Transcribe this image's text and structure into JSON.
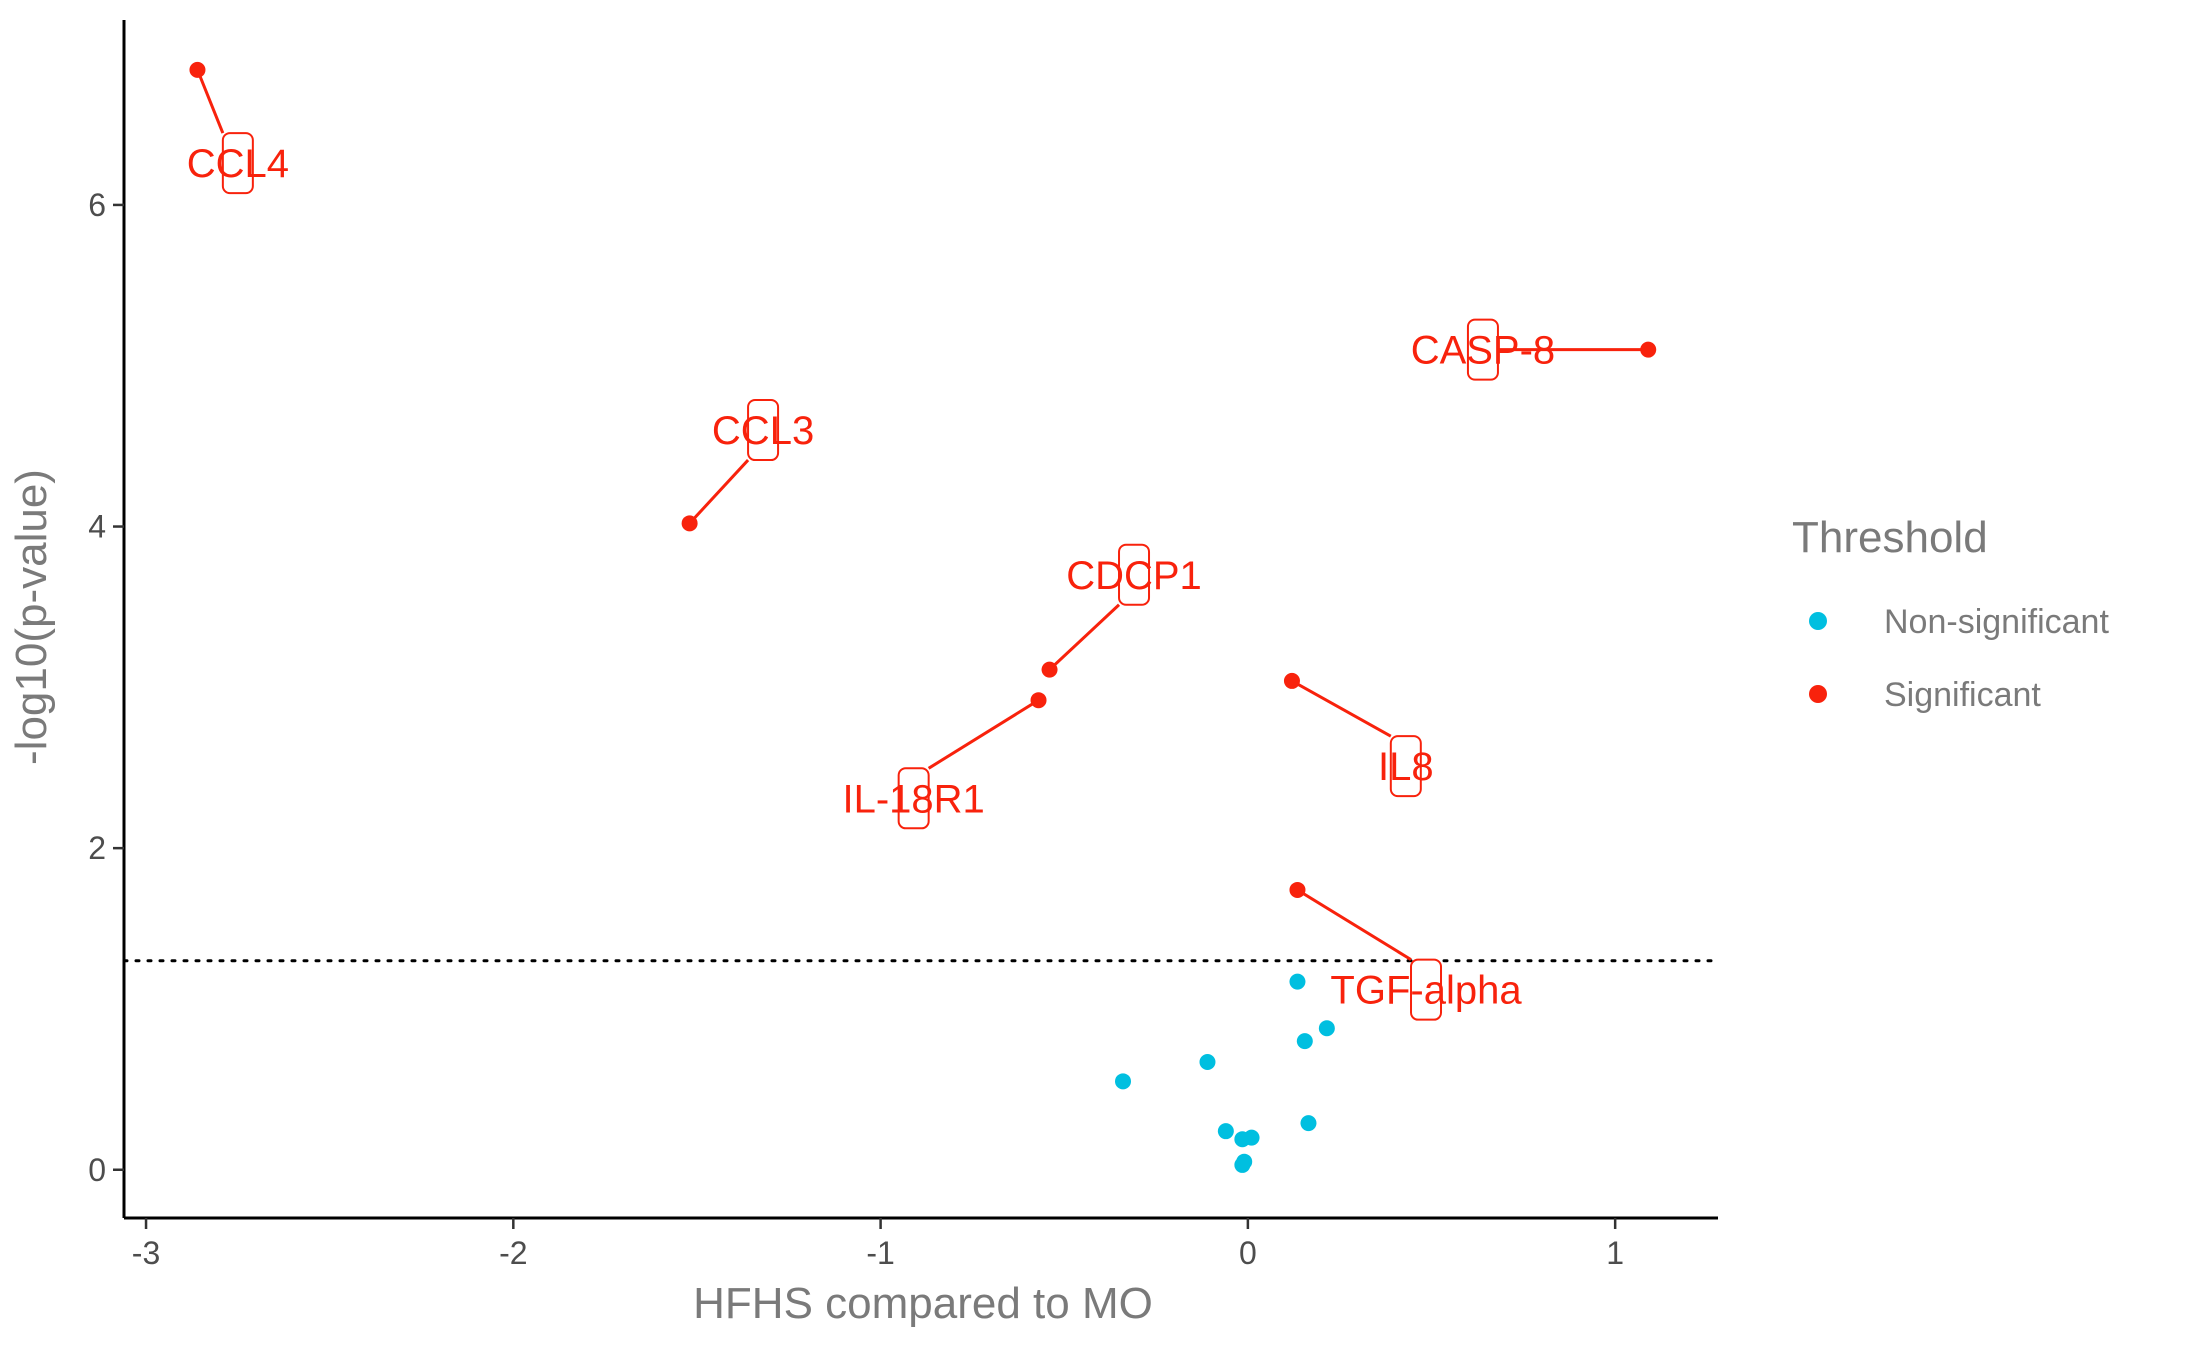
{
  "chart_data": {
    "type": "scatter",
    "xlabel": "HFHS compared to MO",
    "ylabel": "-log10(p-value)",
    "xlim": [
      -3.06,
      1.28
    ],
    "ylim": [
      -0.3,
      7.15
    ],
    "x_ticks": [
      -3,
      -2,
      -1,
      0,
      1
    ],
    "x_tick_labels": [
      "-3",
      "-2",
      "-1",
      "0",
      "1"
    ],
    "y_ticks": [
      0,
      2,
      4,
      6
    ],
    "y_tick_labels": [
      "0",
      "2",
      "4",
      "6"
    ],
    "threshold_line": 1.3,
    "grid": false,
    "legend": {
      "title": "Threshold",
      "position": "right",
      "entries": [
        {
          "label": "Non-significant",
          "color": "#00BFE0"
        },
        {
          "label": "Significant",
          "color": "#F8220C"
        }
      ]
    },
    "series": [
      {
        "name": "Non-significant",
        "color": "#00BFE0",
        "points": [
          {
            "x": -0.34,
            "y": 0.55
          },
          {
            "x": -0.11,
            "y": 0.67
          },
          {
            "x": -0.06,
            "y": 0.24
          },
          {
            "x": -0.015,
            "y": 0.19
          },
          {
            "x": 0.01,
            "y": 0.2
          },
          {
            "x": -0.01,
            "y": 0.05
          },
          {
            "x": -0.015,
            "y": 0.03
          },
          {
            "x": 0.135,
            "y": 1.17
          },
          {
            "x": 0.155,
            "y": 0.8
          },
          {
            "x": 0.215,
            "y": 0.88
          },
          {
            "x": 0.165,
            "y": 0.29
          }
        ]
      },
      {
        "name": "Significant",
        "color": "#F8220C",
        "points": [
          {
            "x": -2.86,
            "y": 6.84,
            "label": "CCL4",
            "lx": -2.75,
            "ly": 6.26
          },
          {
            "x": 1.09,
            "y": 5.1,
            "label": "CASP-8",
            "lx": 0.64,
            "ly": 5.1
          },
          {
            "x": -1.52,
            "y": 4.02,
            "label": "CCL3",
            "lx": -1.32,
            "ly": 4.6
          },
          {
            "x": -0.54,
            "y": 3.11,
            "label": "CDCP1",
            "lx": -0.31,
            "ly": 3.7
          },
          {
            "x": -0.57,
            "y": 2.92,
            "label": "IL-18R1",
            "lx": -0.91,
            "ly": 2.31
          },
          {
            "x": 0.12,
            "y": 3.04,
            "label": "IL8",
            "lx": 0.43,
            "ly": 2.51
          },
          {
            "x": 0.135,
            "y": 1.74,
            "label": "TGF-alpha",
            "lx": 0.485,
            "ly": 1.12
          }
        ]
      }
    ]
  }
}
